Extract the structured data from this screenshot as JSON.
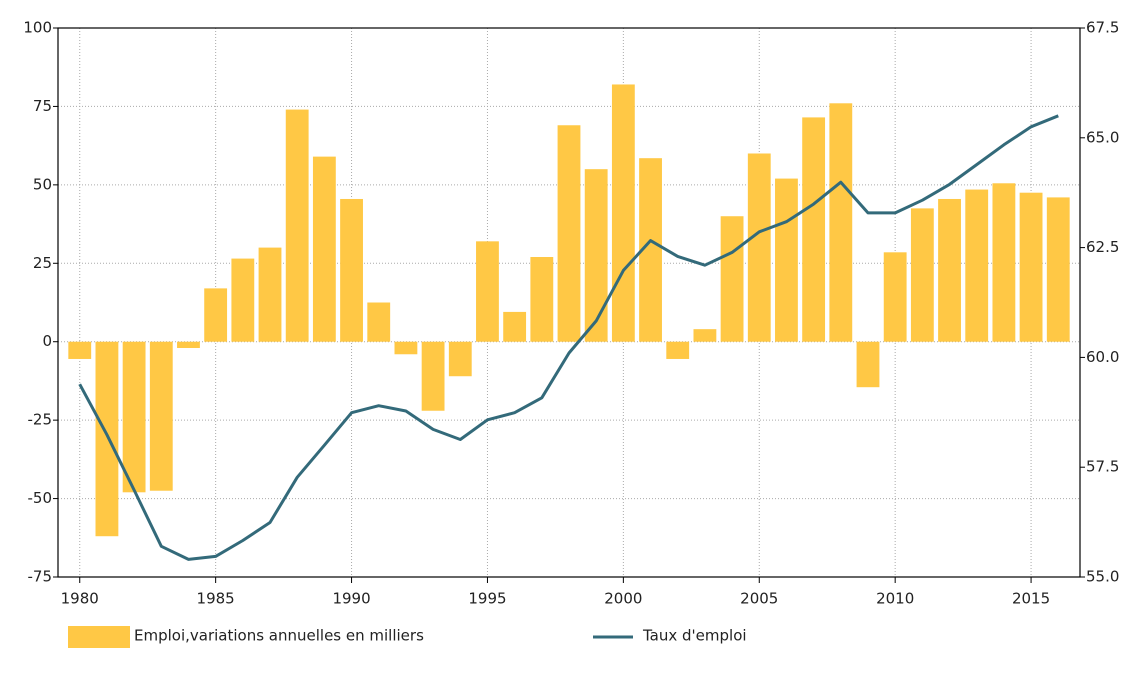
{
  "chart_data": {
    "type": "bar_line",
    "x": [
      1980,
      1981,
      1982,
      1983,
      1984,
      1985,
      1986,
      1987,
      1988,
      1989,
      1990,
      1991,
      1992,
      1993,
      1994,
      1995,
      1996,
      1997,
      1998,
      1999,
      2000,
      2001,
      2002,
      2003,
      2004,
      2005,
      2006,
      2007,
      2008,
      2009,
      2010,
      2011,
      2012,
      2013,
      2014,
      2015,
      2016
    ],
    "xlim": [
      1979.2,
      2016.8
    ],
    "xticks": [
      1980,
      1985,
      1990,
      1995,
      2000,
      2005,
      2010,
      2015
    ],
    "ylim": [
      -75,
      100
    ],
    "yticks": [
      -75,
      -50,
      -25,
      0,
      25,
      50,
      75,
      100
    ],
    "y2lim": [
      55,
      67.5
    ],
    "y2ticks": [
      {
        "value": 55,
        "label": "55.0"
      },
      57.5,
      {
        "value": 60,
        "label": "60.0"
      },
      62.5,
      {
        "value": 65,
        "label": "65.0"
      },
      67.5
    ],
    "grid": true,
    "series": [
      {
        "name": "Emploi,variations annuelles en milliers",
        "type": "bar",
        "color": "#ffc845",
        "values": [
          -5.5,
          -62,
          -48,
          -47.5,
          -2,
          17,
          26.5,
          30,
          74,
          59,
          45.5,
          12.5,
          -4,
          -22,
          -11,
          32,
          9.5,
          27,
          69,
          55,
          82,
          58.5,
          -5.5,
          4,
          40,
          60,
          52,
          71.5,
          76,
          -14.5,
          28.5,
          42.5,
          45.5,
          48.5,
          50.5,
          47.5,
          46
        ]
      },
      {
        "name": "Taux d'emploi",
        "type": "line",
        "axis": "y2",
        "color": "#336a7a",
        "values": [
          59.39,
          58.24,
          56.98,
          55.7,
          55.4,
          55.47,
          55.83,
          56.24,
          57.27,
          58.0,
          58.74,
          58.9,
          58.78,
          58.36,
          58.13,
          58.58,
          58.74,
          59.08,
          60.1,
          60.83,
          61.98,
          62.66,
          62.3,
          62.1,
          62.39,
          62.86,
          63.09,
          63.49,
          63.99,
          63.29,
          63.29,
          63.58,
          63.94,
          64.39,
          64.84,
          65.25,
          65.5
        ]
      }
    ]
  }
}
